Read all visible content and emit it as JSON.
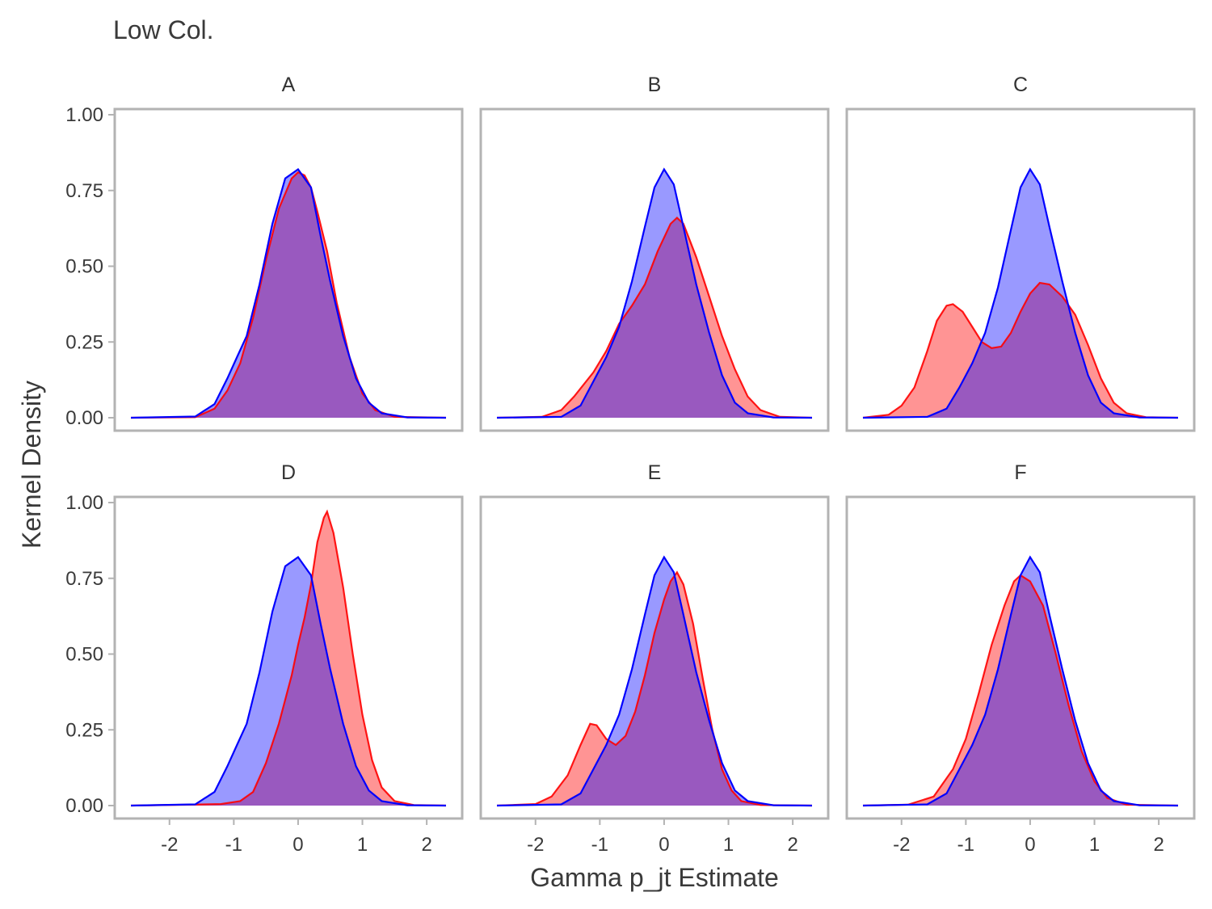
{
  "chart_data": {
    "type": "area",
    "title": "Low Col.",
    "xlabel": "Gamma p_jt Estimate",
    "ylabel": "Kernel Density",
    "xlim": [
      -2.6,
      2.3
    ],
    "ylim": [
      0,
      1.0
    ],
    "x_ticks": [
      "-2",
      "-1",
      "0",
      "1",
      "2"
    ],
    "y_ticks": [
      "0.00",
      "0.25",
      "0.50",
      "0.75",
      "1.00"
    ],
    "legend": "none",
    "colors": {
      "red_series_line": "#ff0000",
      "red_series_fill": "#ff8080",
      "blue_series_line": "#0000ff",
      "blue_series_fill": "#8080ff",
      "overlap": "#9555be",
      "panel_border": "#b3b3b3"
    },
    "panels": [
      {
        "label": "A",
        "red": [
          [
            -2.6,
            0
          ],
          [
            -1.6,
            0.002
          ],
          [
            -1.3,
            0.03
          ],
          [
            -1.1,
            0.09
          ],
          [
            -0.9,
            0.18
          ],
          [
            -0.7,
            0.33
          ],
          [
            -0.5,
            0.52
          ],
          [
            -0.3,
            0.69
          ],
          [
            -0.1,
            0.79
          ],
          [
            0.0,
            0.81
          ],
          [
            0.1,
            0.8
          ],
          [
            0.2,
            0.76
          ],
          [
            0.3,
            0.68
          ],
          [
            0.45,
            0.55
          ],
          [
            0.6,
            0.38
          ],
          [
            0.8,
            0.2
          ],
          [
            1.0,
            0.08
          ],
          [
            1.2,
            0.025
          ],
          [
            1.5,
            0.003
          ],
          [
            2.3,
            0
          ]
        ],
        "blue": [
          [
            -2.6,
            0
          ],
          [
            -1.6,
            0.004
          ],
          [
            -1.3,
            0.045
          ],
          [
            -1.1,
            0.13
          ],
          [
            -0.95,
            0.2
          ],
          [
            -0.8,
            0.27
          ],
          [
            -0.6,
            0.44
          ],
          [
            -0.4,
            0.64
          ],
          [
            -0.2,
            0.79
          ],
          [
            0.0,
            0.82
          ],
          [
            0.2,
            0.76
          ],
          [
            0.35,
            0.6
          ],
          [
            0.5,
            0.45
          ],
          [
            0.7,
            0.27
          ],
          [
            0.9,
            0.13
          ],
          [
            1.1,
            0.05
          ],
          [
            1.3,
            0.015
          ],
          [
            1.7,
            0.001
          ],
          [
            2.3,
            0
          ]
        ]
      },
      {
        "label": "B",
        "red": [
          [
            -2.6,
            0
          ],
          [
            -1.9,
            0.003
          ],
          [
            -1.6,
            0.025
          ],
          [
            -1.4,
            0.07
          ],
          [
            -1.1,
            0.15
          ],
          [
            -0.9,
            0.22
          ],
          [
            -0.7,
            0.31
          ],
          [
            -0.5,
            0.37
          ],
          [
            -0.3,
            0.44
          ],
          [
            -0.1,
            0.55
          ],
          [
            0.1,
            0.64
          ],
          [
            0.2,
            0.66
          ],
          [
            0.3,
            0.64
          ],
          [
            0.5,
            0.53
          ],
          [
            0.7,
            0.4
          ],
          [
            0.9,
            0.27
          ],
          [
            1.1,
            0.16
          ],
          [
            1.3,
            0.07
          ],
          [
            1.5,
            0.025
          ],
          [
            1.8,
            0.003
          ],
          [
            2.3,
            0
          ]
        ],
        "blue": [
          [
            -2.6,
            0
          ],
          [
            -1.6,
            0.003
          ],
          [
            -1.3,
            0.04
          ],
          [
            -1.1,
            0.12
          ],
          [
            -0.9,
            0.2
          ],
          [
            -0.7,
            0.3
          ],
          [
            -0.5,
            0.45
          ],
          [
            -0.3,
            0.63
          ],
          [
            -0.15,
            0.76
          ],
          [
            0.0,
            0.82
          ],
          [
            0.15,
            0.77
          ],
          [
            0.3,
            0.63
          ],
          [
            0.5,
            0.44
          ],
          [
            0.7,
            0.28
          ],
          [
            0.9,
            0.14
          ],
          [
            1.1,
            0.05
          ],
          [
            1.3,
            0.015
          ],
          [
            1.7,
            0.001
          ],
          [
            2.3,
            0
          ]
        ]
      },
      {
        "label": "C",
        "red": [
          [
            -2.6,
            0
          ],
          [
            -2.2,
            0.01
          ],
          [
            -2.0,
            0.04
          ],
          [
            -1.8,
            0.1
          ],
          [
            -1.6,
            0.22
          ],
          [
            -1.45,
            0.32
          ],
          [
            -1.3,
            0.37
          ],
          [
            -1.2,
            0.375
          ],
          [
            -1.05,
            0.35
          ],
          [
            -0.9,
            0.3
          ],
          [
            -0.75,
            0.25
          ],
          [
            -0.6,
            0.23
          ],
          [
            -0.45,
            0.235
          ],
          [
            -0.3,
            0.28
          ],
          [
            -0.15,
            0.35
          ],
          [
            0.0,
            0.41
          ],
          [
            0.15,
            0.445
          ],
          [
            0.3,
            0.44
          ],
          [
            0.5,
            0.4
          ],
          [
            0.7,
            0.34
          ],
          [
            0.9,
            0.24
          ],
          [
            1.1,
            0.13
          ],
          [
            1.3,
            0.05
          ],
          [
            1.5,
            0.015
          ],
          [
            1.8,
            0.002
          ],
          [
            2.3,
            0
          ]
        ],
        "blue": [
          [
            -2.6,
            0
          ],
          [
            -1.6,
            0.003
          ],
          [
            -1.3,
            0.03
          ],
          [
            -1.1,
            0.1
          ],
          [
            -0.9,
            0.18
          ],
          [
            -0.7,
            0.28
          ],
          [
            -0.5,
            0.43
          ],
          [
            -0.3,
            0.62
          ],
          [
            -0.15,
            0.76
          ],
          [
            0.0,
            0.82
          ],
          [
            0.15,
            0.77
          ],
          [
            0.3,
            0.63
          ],
          [
            0.5,
            0.45
          ],
          [
            0.7,
            0.28
          ],
          [
            0.9,
            0.14
          ],
          [
            1.1,
            0.05
          ],
          [
            1.3,
            0.015
          ],
          [
            1.7,
            0.001
          ],
          [
            2.3,
            0
          ]
        ]
      },
      {
        "label": "D",
        "red": [
          [
            -2.6,
            0
          ],
          [
            -1.7,
            0.003
          ],
          [
            -1.2,
            0.005
          ],
          [
            -0.9,
            0.015
          ],
          [
            -0.7,
            0.045
          ],
          [
            -0.5,
            0.14
          ],
          [
            -0.3,
            0.27
          ],
          [
            -0.1,
            0.43
          ],
          [
            0.0,
            0.53
          ],
          [
            0.1,
            0.62
          ],
          [
            0.2,
            0.73
          ],
          [
            0.3,
            0.87
          ],
          [
            0.4,
            0.95
          ],
          [
            0.45,
            0.97
          ],
          [
            0.55,
            0.9
          ],
          [
            0.7,
            0.72
          ],
          [
            0.85,
            0.5
          ],
          [
            1.0,
            0.3
          ],
          [
            1.15,
            0.15
          ],
          [
            1.3,
            0.06
          ],
          [
            1.5,
            0.015
          ],
          [
            1.8,
            0.002
          ],
          [
            2.3,
            0
          ]
        ],
        "blue": [
          [
            -2.6,
            0
          ],
          [
            -1.6,
            0.004
          ],
          [
            -1.3,
            0.045
          ],
          [
            -1.1,
            0.13
          ],
          [
            -0.95,
            0.2
          ],
          [
            -0.8,
            0.27
          ],
          [
            -0.6,
            0.44
          ],
          [
            -0.4,
            0.64
          ],
          [
            -0.2,
            0.79
          ],
          [
            0.0,
            0.82
          ],
          [
            0.2,
            0.76
          ],
          [
            0.35,
            0.6
          ],
          [
            0.5,
            0.45
          ],
          [
            0.7,
            0.27
          ],
          [
            0.9,
            0.13
          ],
          [
            1.1,
            0.05
          ],
          [
            1.3,
            0.015
          ],
          [
            1.7,
            0.001
          ],
          [
            2.3,
            0
          ]
        ]
      },
      {
        "label": "E",
        "red": [
          [
            -2.6,
            0
          ],
          [
            -2.0,
            0.005
          ],
          [
            -1.75,
            0.03
          ],
          [
            -1.5,
            0.1
          ],
          [
            -1.3,
            0.2
          ],
          [
            -1.15,
            0.27
          ],
          [
            -1.05,
            0.265
          ],
          [
            -0.9,
            0.22
          ],
          [
            -0.75,
            0.2
          ],
          [
            -0.6,
            0.23
          ],
          [
            -0.45,
            0.31
          ],
          [
            -0.3,
            0.43
          ],
          [
            -0.15,
            0.57
          ],
          [
            0.0,
            0.68
          ],
          [
            0.1,
            0.74
          ],
          [
            0.2,
            0.77
          ],
          [
            0.3,
            0.73
          ],
          [
            0.45,
            0.6
          ],
          [
            0.6,
            0.42
          ],
          [
            0.75,
            0.25
          ],
          [
            0.9,
            0.12
          ],
          [
            1.05,
            0.05
          ],
          [
            1.2,
            0.015
          ],
          [
            1.5,
            0.002
          ],
          [
            2.3,
            0
          ]
        ],
        "blue": [
          [
            -2.6,
            0
          ],
          [
            -1.6,
            0.004
          ],
          [
            -1.3,
            0.04
          ],
          [
            -1.1,
            0.12
          ],
          [
            -0.9,
            0.2
          ],
          [
            -0.7,
            0.3
          ],
          [
            -0.5,
            0.45
          ],
          [
            -0.3,
            0.63
          ],
          [
            -0.15,
            0.76
          ],
          [
            0.0,
            0.82
          ],
          [
            0.15,
            0.77
          ],
          [
            0.3,
            0.63
          ],
          [
            0.5,
            0.44
          ],
          [
            0.7,
            0.28
          ],
          [
            0.9,
            0.14
          ],
          [
            1.1,
            0.05
          ],
          [
            1.3,
            0.015
          ],
          [
            1.7,
            0.001
          ],
          [
            2.3,
            0
          ]
        ]
      },
      {
        "label": "F",
        "red": [
          [
            -2.6,
            0
          ],
          [
            -1.9,
            0.003
          ],
          [
            -1.5,
            0.03
          ],
          [
            -1.2,
            0.12
          ],
          [
            -1.0,
            0.22
          ],
          [
            -0.8,
            0.37
          ],
          [
            -0.6,
            0.53
          ],
          [
            -0.4,
            0.66
          ],
          [
            -0.25,
            0.74
          ],
          [
            -0.15,
            0.76
          ],
          [
            0.0,
            0.74
          ],
          [
            0.2,
            0.66
          ],
          [
            0.4,
            0.5
          ],
          [
            0.6,
            0.33
          ],
          [
            0.8,
            0.18
          ],
          [
            1.0,
            0.08
          ],
          [
            1.2,
            0.025
          ],
          [
            1.5,
            0.003
          ],
          [
            2.3,
            0
          ]
        ],
        "blue": [
          [
            -2.6,
            0
          ],
          [
            -1.6,
            0.004
          ],
          [
            -1.3,
            0.04
          ],
          [
            -1.1,
            0.12
          ],
          [
            -0.9,
            0.2
          ],
          [
            -0.7,
            0.3
          ],
          [
            -0.5,
            0.45
          ],
          [
            -0.3,
            0.63
          ],
          [
            -0.15,
            0.76
          ],
          [
            0.0,
            0.82
          ],
          [
            0.15,
            0.77
          ],
          [
            0.3,
            0.63
          ],
          [
            0.5,
            0.45
          ],
          [
            0.7,
            0.28
          ],
          [
            0.9,
            0.14
          ],
          [
            1.1,
            0.05
          ],
          [
            1.3,
            0.015
          ],
          [
            1.7,
            0.001
          ],
          [
            2.3,
            0
          ]
        ]
      }
    ]
  }
}
